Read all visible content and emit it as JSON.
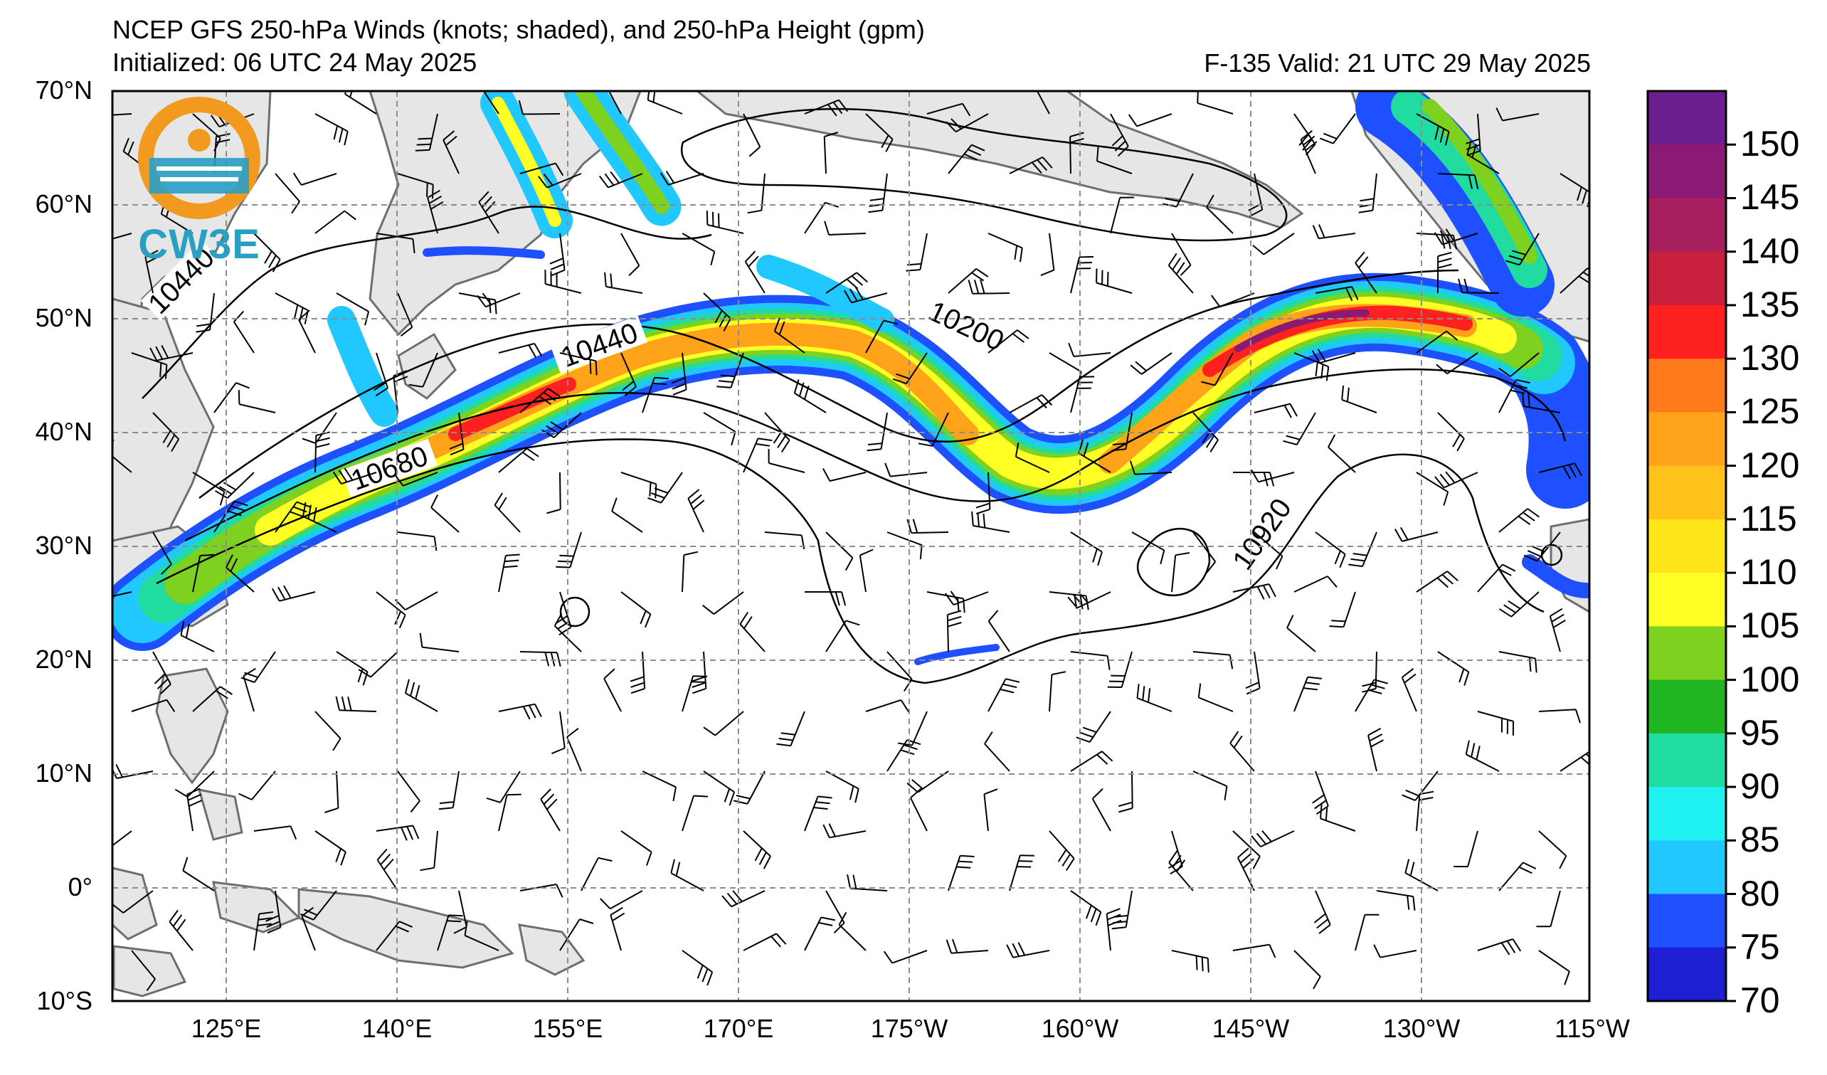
{
  "title": {
    "line1": "NCEP GFS 250-hPa Winds (knots; shaded), and 250-hPa Height (gpm)",
    "line2": "Initialized: 06 UTC 24 May 2025",
    "forecast": "F-135  Valid: 21 UTC 29 May 2025"
  },
  "logo": {
    "text": "CW3E",
    "icon": "cw3e-logo-icon"
  },
  "axes": {
    "lat_labels": [
      "70°N",
      "60°N",
      "50°N",
      "40°N",
      "30°N",
      "20°N",
      "10°N",
      "0°",
      "10°S"
    ],
    "lon_labels": [
      "125°E",
      "140°E",
      "155°E",
      "170°E",
      "175°W",
      "160°W",
      "145°W",
      "130°W",
      "115°W"
    ]
  },
  "contours": {
    "labels": [
      "10440",
      "10440",
      "10200",
      "10680",
      "10920"
    ]
  },
  "colorbar": {
    "labels": [
      "150",
      "145",
      "140",
      "135",
      "130",
      "125",
      "120",
      "115",
      "110",
      "105",
      "100",
      "95",
      "90",
      "85",
      "80",
      "75",
      "70"
    ],
    "colors": [
      "#6e1f8f",
      "#8a1a73",
      "#a71f5f",
      "#c8203d",
      "#ff2020",
      "#ff7a1a",
      "#ffa31a",
      "#ffc21a",
      "#ffe61a",
      "#ffff26",
      "#7fd11f",
      "#22b522",
      "#20dca0",
      "#1ff0f0",
      "#20c8ff",
      "#1e50ff",
      "#1e1ed2"
    ]
  }
}
